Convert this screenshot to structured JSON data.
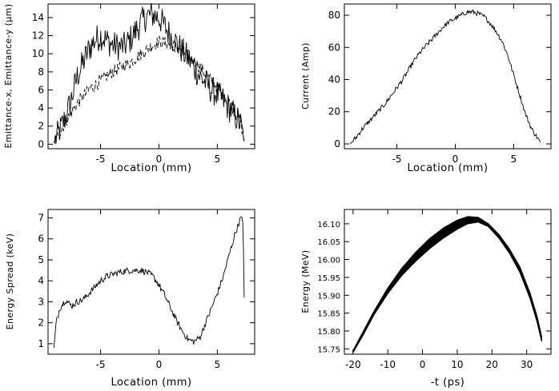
{
  "chart_data": [
    {
      "id": "emittance",
      "type": "line",
      "title": "",
      "xlabel": "Location (mm)",
      "ylabel": "Emittance-x, Emittance-y (μm)",
      "xlim": [
        -9.5,
        8.2
      ],
      "ylim": [
        -0.5,
        15.5
      ],
      "xticks": [
        -5,
        0,
        5
      ],
      "xtick_labels": [
        "-5",
        "0",
        "5"
      ],
      "yticks": [
        0,
        2,
        4,
        6,
        8,
        10,
        12,
        14
      ],
      "ytick_labels": [
        "0",
        "2",
        "4",
        "6",
        "8",
        "10",
        "12",
        "14"
      ],
      "grid": false,
      "series": [
        {
          "name": "Emittance-x",
          "style": "solid",
          "x": [
            -9,
            -8.5,
            -8,
            -7.5,
            -7,
            -6.5,
            -6,
            -5.5,
            -5,
            -4.5,
            -4,
            -3.5,
            -3,
            -2.5,
            -2,
            -1.5,
            -1,
            -0.5,
            0,
            0.5,
            1,
            1.5,
            2,
            2.5,
            3,
            3.5,
            4,
            4.5,
            5,
            5.5,
            6,
            6.5,
            7,
            7.3
          ],
          "y": [
            0.2,
            1.5,
            3,
            5,
            7.5,
            9,
            10.5,
            11.5,
            12,
            11.5,
            11,
            10.8,
            10.8,
            11.5,
            12.5,
            13.5,
            14.2,
            14.3,
            14,
            13,
            12,
            11.2,
            10.3,
            9.5,
            8.5,
            7.5,
            6.8,
            6,
            5.5,
            4.8,
            4,
            3.2,
            2.2,
            0.3
          ],
          "noise": 1.6
        },
        {
          "name": "Emittance-y",
          "style": "dashed",
          "x": [
            -9,
            -8.5,
            -8,
            -7.5,
            -7,
            -6.5,
            -6,
            -5.5,
            -5,
            -4.5,
            -4,
            -3.5,
            -3,
            -2.5,
            -2,
            -1.5,
            -1,
            -0.5,
            0,
            0.5,
            1,
            1.5,
            2,
            2.5,
            3,
            3.5,
            4,
            4.5,
            5,
            5.5,
            6,
            6.5,
            7,
            7.3
          ],
          "y": [
            0.2,
            1.3,
            2.5,
            3.5,
            4.5,
            5.3,
            6,
            6.5,
            7,
            7.5,
            8,
            8.3,
            8.7,
            9,
            9.5,
            10,
            10.5,
            11,
            11.3,
            11.2,
            11,
            10.8,
            10.3,
            9.8,
            9.2,
            8.5,
            7.8,
            7,
            6.3,
            5.5,
            4.6,
            3.6,
            2.5,
            0.4
          ],
          "noise": 0.7
        }
      ]
    },
    {
      "id": "current",
      "type": "line",
      "title": "",
      "xlabel": "Location (mm)",
      "ylabel": "Current (Amp)",
      "xlim": [
        -9.5,
        8.2
      ],
      "ylim": [
        -3,
        87
      ],
      "xticks": [
        -5,
        0,
        5
      ],
      "xtick_labels": [
        "-5",
        "0",
        "5"
      ],
      "yticks": [
        0,
        20,
        40,
        60,
        80
      ],
      "ytick_labels": [
        "0",
        "20",
        "40",
        "60",
        "80"
      ],
      "grid": false,
      "series": [
        {
          "name": "Current",
          "style": "solid",
          "x": [
            -9,
            -8.5,
            -8,
            -7.5,
            -7,
            -6.5,
            -6,
            -5.5,
            -5,
            -4.5,
            -4,
            -3.5,
            -3,
            -2.5,
            -2,
            -1.5,
            -1,
            -0.5,
            0,
            0.5,
            1,
            1.5,
            2,
            2.5,
            3,
            3.5,
            4,
            4.5,
            5,
            5.5,
            6,
            6.5,
            7,
            7.3
          ],
          "y": [
            0,
            4,
            9,
            13,
            17,
            21,
            25,
            30,
            35,
            40,
            46,
            52,
            57,
            61,
            65,
            69,
            73,
            76,
            78,
            80,
            82,
            82,
            81,
            79,
            75,
            70,
            64,
            55,
            43,
            31,
            19,
            10,
            4,
            1
          ],
          "noise": 1.5
        }
      ]
    },
    {
      "id": "energy-spread",
      "type": "line",
      "title": "",
      "xlabel": "Location (mm)",
      "ylabel": "Energy Spread (keV)",
      "xlim": [
        -9.5,
        8.2
      ],
      "ylim": [
        0.5,
        7.4
      ],
      "xticks": [
        -5,
        0,
        5
      ],
      "xtick_labels": [
        "-5",
        "0",
        "5"
      ],
      "yticks": [
        1,
        2,
        3,
        4,
        5,
        6,
        7
      ],
      "ytick_labels": [
        "1",
        "2",
        "3",
        "4",
        "5",
        "6",
        "7"
      ],
      "grid": false,
      "series": [
        {
          "name": "Energy Spread",
          "style": "solid",
          "x": [
            -9,
            -8.8,
            -8.5,
            -8,
            -7.5,
            -7,
            -6.5,
            -6,
            -5.5,
            -5,
            -4.5,
            -4,
            -3.5,
            -3,
            -2.5,
            -2,
            -1.5,
            -1,
            -0.5,
            0,
            0.5,
            1,
            1.5,
            2,
            2.5,
            3,
            3.5,
            4,
            4.5,
            5,
            5.5,
            6,
            6.5,
            7,
            7.2,
            7.3
          ],
          "y": [
            0.8,
            2,
            2.7,
            3.1,
            2.8,
            3,
            3.1,
            3.4,
            3.7,
            4,
            4.2,
            4.3,
            4.4,
            4.45,
            4.5,
            4.5,
            4.5,
            4.4,
            4.2,
            3.8,
            3.3,
            2.7,
            2.1,
            1.6,
            1.2,
            1.1,
            1.3,
            2,
            2.7,
            3.4,
            4.2,
            5.2,
            6.2,
            7,
            6.8,
            3.2
          ],
          "noise": 0.16
        }
      ]
    },
    {
      "id": "phase-space",
      "type": "area",
      "title": "",
      "xlabel": "-t (ps)",
      "ylabel": "Energy (MeV)",
      "xlim": [
        -22.5,
        37
      ],
      "ylim": [
        15.735,
        16.14
      ],
      "xticks": [
        -20,
        -10,
        0,
        10,
        20,
        30
      ],
      "xtick_labels": [
        "-20",
        "-10",
        "0",
        "10",
        "20",
        "30"
      ],
      "yticks": [
        15.75,
        15.8,
        15.85,
        15.9,
        15.95,
        16.0,
        16.05,
        16.1
      ],
      "ytick_labels": [
        "15.75",
        "15.80",
        "15.85",
        "15.90",
        "15.95",
        "16.00",
        "16.05",
        "16.10"
      ],
      "grid": false,
      "series": [
        {
          "name": "Upper edge",
          "x": [
            -20,
            -17,
            -14,
            -10,
            -6,
            -2,
            2,
            6,
            10,
            13,
            16,
            19,
            22,
            25,
            28,
            31,
            33,
            34.3
          ],
          "y": [
            15.745,
            15.8,
            15.855,
            15.92,
            15.975,
            16.02,
            16.058,
            16.088,
            16.11,
            16.12,
            16.118,
            16.1,
            16.07,
            16.03,
            15.98,
            15.905,
            15.84,
            15.785
          ]
        },
        {
          "name": "Lower edge",
          "x": [
            -20,
            -17,
            -14,
            -10,
            -6,
            -2,
            2,
            6,
            10,
            13,
            16,
            19,
            22,
            25,
            28,
            31,
            33,
            34.3
          ],
          "y": [
            15.74,
            15.79,
            15.845,
            15.905,
            15.955,
            15.995,
            16.03,
            16.06,
            16.085,
            16.1,
            16.105,
            16.092,
            16.06,
            16.018,
            15.965,
            15.89,
            15.825,
            15.772
          ]
        }
      ]
    }
  ]
}
